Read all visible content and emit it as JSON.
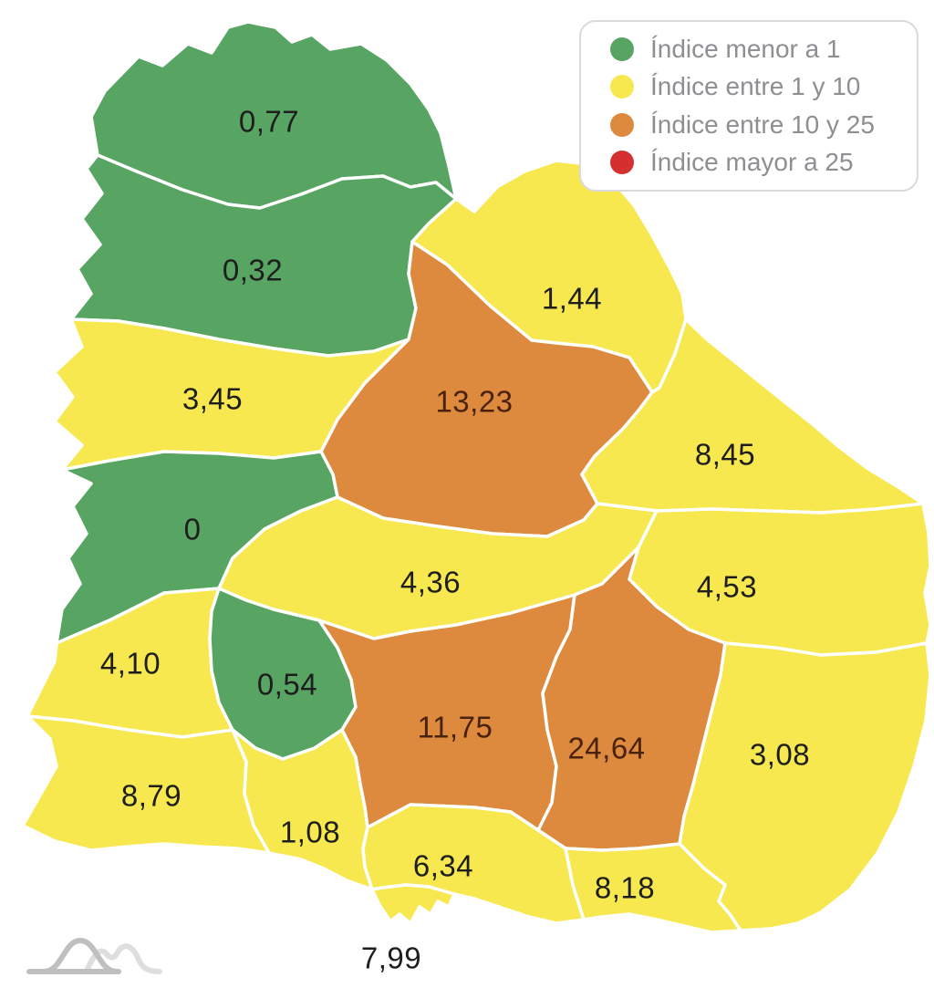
{
  "legend": {
    "items": [
      {
        "key": "menor_1",
        "label": "Índice menor a 1",
        "color": "#58a563"
      },
      {
        "key": "entre_1_10",
        "label": "Índice entre 1 y 10",
        "color": "#f6e84e"
      },
      {
        "key": "entre_10_25",
        "label": "Índice entre 10 y 25",
        "color": "#de8a3e"
      },
      {
        "key": "mayor_25",
        "label": "Índice mayor a 25",
        "color": "#d53030"
      }
    ]
  },
  "map_style": {
    "border_color": "#ffffff",
    "label_color": "#1e1e1e",
    "label_color_on_orange": "#49220b",
    "background": "#ffffff",
    "logo_front_color": "#bfbfbf",
    "logo_back_color": "#dedede"
  },
  "chart_data": {
    "type": "choropleth",
    "title": "",
    "legend_position": "top-right",
    "categories": {
      "menor_1": "Índice menor a 1",
      "entre_1_10": "Índice entre 1 y 10",
      "entre_10_25": "Índice entre 10 y 25",
      "mayor_25": "Índice mayor a 25"
    },
    "regions": [
      {
        "id": "artigas",
        "value_label": "0,77",
        "value": 0.77,
        "category": "menor_1"
      },
      {
        "id": "salto",
        "value_label": "0,32",
        "value": 0.32,
        "category": "menor_1"
      },
      {
        "id": "rivera",
        "value_label": "1,44",
        "value": 1.44,
        "category": "entre_1_10"
      },
      {
        "id": "paysandu",
        "value_label": "3,45",
        "value": 3.45,
        "category": "entre_1_10"
      },
      {
        "id": "tacuarembo",
        "value_label": "13,23",
        "value": 13.23,
        "category": "entre_10_25"
      },
      {
        "id": "cerro-largo",
        "value_label": "8,45",
        "value": 8.45,
        "category": "entre_1_10"
      },
      {
        "id": "rio-negro",
        "value_label": "0",
        "value": 0,
        "category": "menor_1"
      },
      {
        "id": "durazno",
        "value_label": "4,36",
        "value": 4.36,
        "category": "entre_1_10"
      },
      {
        "id": "treinta-y-tres",
        "value_label": "4,53",
        "value": 4.53,
        "category": "entre_1_10"
      },
      {
        "id": "soriano",
        "value_label": "4,10",
        "value": 4.1,
        "category": "entre_1_10"
      },
      {
        "id": "flores",
        "value_label": "0,54",
        "value": 0.54,
        "category": "menor_1"
      },
      {
        "id": "florida",
        "value_label": "11,75",
        "value": 11.75,
        "category": "entre_10_25"
      },
      {
        "id": "lavalleja",
        "value_label": "24,64",
        "value": 24.64,
        "category": "entre_10_25"
      },
      {
        "id": "rocha",
        "value_label": "3,08",
        "value": 3.08,
        "category": "entre_1_10"
      },
      {
        "id": "colonia",
        "value_label": "8,79",
        "value": 8.79,
        "category": "entre_1_10"
      },
      {
        "id": "san-jose",
        "value_label": "1,08",
        "value": 1.08,
        "category": "entre_1_10"
      },
      {
        "id": "canelones",
        "value_label": "6,34",
        "value": 6.34,
        "category": "entre_1_10"
      },
      {
        "id": "maldonado",
        "value_label": "8,18",
        "value": 8.18,
        "category": "entre_1_10"
      },
      {
        "id": "montevideo",
        "value_label": "7,99",
        "value": 7.99,
        "category": "entre_1_10"
      }
    ]
  }
}
